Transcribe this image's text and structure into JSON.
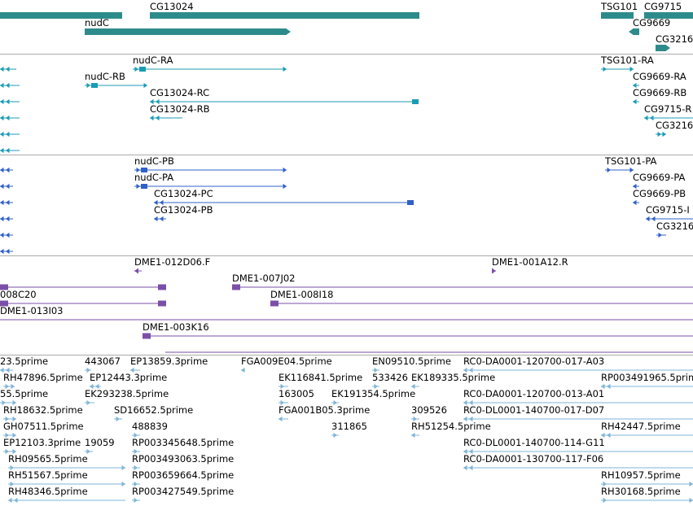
{
  "tracks": [
    {
      "name": "genes",
      "color": "#2e8b8b",
      "features": [
        {
          "label": "",
          "start": -5,
          "end": 150,
          "dir": "none",
          "row": 0,
          "style": "block"
        },
        {
          "label": "CG13024",
          "start": 184,
          "end": 515,
          "dir": "none",
          "row": 0,
          "style": "block"
        },
        {
          "label": "TSG101",
          "start": 738,
          "end": 778,
          "dir": "none",
          "row": 0,
          "style": "block"
        },
        {
          "label": "CG9715",
          "start": 791,
          "end": 851,
          "dir": "none",
          "row": 0,
          "style": "block"
        },
        {
          "label": "nudC",
          "start": 104,
          "end": 352,
          "dir": "right",
          "row": 1,
          "style": "block"
        },
        {
          "label": "CG9669",
          "start": 777,
          "end": 785,
          "dir": "left",
          "row": 1,
          "style": "block"
        },
        {
          "label": "CG3216",
          "start": 805,
          "end": 818,
          "dir": "right",
          "row": 2,
          "style": "block"
        }
      ]
    },
    {
      "name": "transcripts-ra",
      "color": "#1c9bb5",
      "features": [
        {
          "label": "",
          "start": 0,
          "end": 20,
          "dir": "left",
          "row": 0,
          "style": "line"
        },
        {
          "label": "nudC-RA",
          "start": 163,
          "end": 352,
          "dir": "right",
          "row": 0,
          "style": "line"
        },
        {
          "label": "TSG101-RA",
          "start": 738,
          "end": 778,
          "dir": "right",
          "row": 0,
          "style": "line"
        },
        {
          "label": "",
          "start": 0,
          "end": 24,
          "dir": "left",
          "row": 1,
          "style": "line"
        },
        {
          "label": "nudC-RB",
          "start": 104,
          "end": 181,
          "dir": "right",
          "row": 1,
          "style": "line"
        },
        {
          "label": "CG9669-RA",
          "start": 777,
          "end": 785,
          "dir": "left",
          "row": 1,
          "style": "line"
        },
        {
          "label": "",
          "start": 0,
          "end": 24,
          "dir": "left",
          "row": 2,
          "style": "line"
        },
        {
          "label": "CG13024-RC",
          "start": 184,
          "end": 514,
          "dir": "left",
          "row": 2,
          "style": "line"
        },
        {
          "label": "CG9669-RB",
          "start": 777,
          "end": 785,
          "dir": "left",
          "row": 2,
          "style": "line"
        },
        {
          "label": "",
          "start": 0,
          "end": 24,
          "dir": "left",
          "row": 3,
          "style": "line"
        },
        {
          "label": "CG13024-RB",
          "start": 184,
          "end": 224,
          "dir": "left",
          "row": 3,
          "style": "line"
        },
        {
          "label": "CG9715-R",
          "start": 791,
          "end": 851,
          "dir": "left",
          "row": 3,
          "style": "line"
        },
        {
          "label": "",
          "start": 0,
          "end": 24,
          "dir": "left",
          "row": 4,
          "style": "line"
        },
        {
          "label": "CG3216",
          "start": 805,
          "end": 818,
          "dir": "right",
          "row": 4,
          "style": "line"
        },
        {
          "label": "",
          "start": 0,
          "end": 24,
          "dir": "left",
          "row": 5,
          "style": "line"
        }
      ]
    },
    {
      "name": "transcripts-pa",
      "color": "#3060c8",
      "features": [
        {
          "label": "",
          "start": 0,
          "end": 16,
          "dir": "left",
          "row": 0,
          "style": "line"
        },
        {
          "label": "nudC-PB",
          "start": 165,
          "end": 352,
          "dir": "right",
          "row": 0,
          "style": "line"
        },
        {
          "label": "TSG101-PA",
          "start": 743,
          "end": 778,
          "dir": "right",
          "row": 0,
          "style": "line"
        },
        {
          "label": "",
          "start": 0,
          "end": 16,
          "dir": "left",
          "row": 1,
          "style": "line"
        },
        {
          "label": "nudC-PA",
          "start": 165,
          "end": 352,
          "dir": "right",
          "row": 1,
          "style": "line"
        },
        {
          "label": "CG9669-PA",
          "start": 777,
          "end": 785,
          "dir": "left",
          "row": 1,
          "style": "line"
        },
        {
          "label": "",
          "start": 0,
          "end": 16,
          "dir": "left",
          "row": 2,
          "style": "line"
        },
        {
          "label": "CG13024-PC",
          "start": 189,
          "end": 508,
          "dir": "left",
          "row": 2,
          "style": "line"
        },
        {
          "label": "CG9669-PB",
          "start": 777,
          "end": 785,
          "dir": "left",
          "row": 2,
          "style": "line"
        },
        {
          "label": "",
          "start": 0,
          "end": 16,
          "dir": "left",
          "row": 3,
          "style": "line"
        },
        {
          "label": "CG13024-PB",
          "start": 189,
          "end": 204,
          "dir": "left",
          "row": 3,
          "style": "line"
        },
        {
          "label": "CG9715-I",
          "start": 793,
          "end": 851,
          "dir": "left",
          "row": 3,
          "style": "line"
        },
        {
          "label": "",
          "start": 0,
          "end": 16,
          "dir": "left",
          "row": 4,
          "style": "line"
        },
        {
          "label": "CG3216",
          "start": 806,
          "end": 818,
          "dir": "right",
          "row": 4,
          "style": "line"
        },
        {
          "label": "",
          "start": 0,
          "end": 16,
          "dir": "left",
          "row": 5,
          "style": "line"
        }
      ]
    },
    {
      "name": "clones",
      "color": "#7a4fa8",
      "features": [
        {
          "label": "DME1-012D06.F",
          "start": 165,
          "end": 174,
          "dir": "left",
          "row": 0,
          "style": "clone"
        },
        {
          "label": "DME1-001A12.R",
          "start": 604,
          "end": 609,
          "dir": "right",
          "row": 0,
          "style": "clone"
        },
        {
          "label": "",
          "start": 0,
          "end": 204,
          "dir": "left",
          "row": 1,
          "style": "clone"
        },
        {
          "label": "DME1-007J02",
          "start": 285,
          "end": 851,
          "dir": "left",
          "row": 1,
          "style": "clone"
        },
        {
          "label": "008C20",
          "start": 0,
          "end": 204,
          "dir": "left",
          "row": 2,
          "style": "clone"
        },
        {
          "label": "DME1-008I18",
          "start": 332,
          "end": 851,
          "dir": "left",
          "row": 2,
          "style": "clone"
        },
        {
          "label": "DME1-013I03",
          "start": 0,
          "end": 851,
          "dir": "none",
          "row": 3,
          "style": "clone"
        },
        {
          "label": "DME1-003K16",
          "start": 175,
          "end": 851,
          "dir": "left",
          "row": 4,
          "style": "clone"
        },
        {
          "label": "",
          "start": 203,
          "end": 851,
          "dir": "none",
          "row": 5,
          "style": "clone"
        }
      ]
    },
    {
      "name": "ests",
      "color": "#7fb4d8",
      "features": [
        {
          "label": "23.5prime",
          "start": 0,
          "end": 16,
          "dir": "left",
          "row": 0,
          "style": "est"
        },
        {
          "label": "443067",
          "start": 104,
          "end": 112,
          "dir": "right",
          "row": 0,
          "style": "est"
        },
        {
          "label": "EP13859.3prime",
          "start": 160,
          "end": 172,
          "dir": "left",
          "row": 0,
          "style": "est"
        },
        {
          "label": "FGA009E04.5prime",
          "start": 296,
          "end": 301,
          "dir": "left",
          "row": 0,
          "style": "est"
        },
        {
          "label": "EN09510.5prime",
          "start": 457,
          "end": 466,
          "dir": "right",
          "row": 0,
          "style": "est"
        },
        {
          "label": "RC0-DA0001-120700-017-A03",
          "start": 569,
          "end": 851,
          "dir": "left",
          "row": 0,
          "style": "est"
        },
        {
          "label": "RH47896.5prime",
          "start": 4,
          "end": 18,
          "dir": "right",
          "row": 1,
          "style": "est"
        },
        {
          "label": "EP12443.3prime",
          "start": 110,
          "end": 124,
          "dir": "left",
          "row": 1,
          "style": "est"
        },
        {
          "label": "EK116841.5prime",
          "start": 342,
          "end": 354,
          "dir": "right",
          "row": 1,
          "style": "est"
        },
        {
          "label": "533426",
          "start": 457,
          "end": 466,
          "dir": "right",
          "row": 1,
          "style": "est"
        },
        {
          "label": "EK189335.5prime",
          "start": 505,
          "end": 515,
          "dir": "left",
          "row": 1,
          "style": "est"
        },
        {
          "label": "RP003491965.5prime",
          "start": 738,
          "end": 851,
          "dir": "left",
          "row": 1,
          "style": "est"
        },
        {
          "label": "55.5prime",
          "start": 0,
          "end": 20,
          "dir": "right",
          "row": 2,
          "style": "est"
        },
        {
          "label": "EK293238.5prime",
          "start": 104,
          "end": 116,
          "dir": "right",
          "row": 2,
          "style": "est"
        },
        {
          "label": "163005",
          "start": 342,
          "end": 354,
          "dir": "right",
          "row": 2,
          "style": "est"
        },
        {
          "label": "EK191354.5prime",
          "start": 407,
          "end": 416,
          "dir": "right",
          "row": 2,
          "style": "est"
        },
        {
          "label": "RC0-DA0001-120700-013-A01",
          "start": 569,
          "end": 851,
          "dir": "left",
          "row": 2,
          "style": "est"
        },
        {
          "label": "RH18632.5prime",
          "start": 4,
          "end": 20,
          "dir": "right",
          "row": 3,
          "style": "est"
        },
        {
          "label": "SD16652.5prime",
          "start": 140,
          "end": 150,
          "dir": "right",
          "row": 3,
          "style": "est"
        },
        {
          "label": "FGA001B05.3prime",
          "start": 342,
          "end": 354,
          "dir": "left",
          "row": 3,
          "style": "est"
        },
        {
          "label": "309526",
          "start": 505,
          "end": 515,
          "dir": "right",
          "row": 3,
          "style": "est"
        },
        {
          "label": "RC0-DL0001-140700-017-D07",
          "start": 569,
          "end": 851,
          "dir": "left",
          "row": 3,
          "style": "est"
        },
        {
          "label": "GH07511.5prime",
          "start": 4,
          "end": 20,
          "dir": "right",
          "row": 4,
          "style": "est"
        },
        {
          "label": "488839",
          "start": 162,
          "end": 172,
          "dir": "right",
          "row": 4,
          "style": "est"
        },
        {
          "label": "311865",
          "start": 407,
          "end": 416,
          "dir": "right",
          "row": 4,
          "style": "est"
        },
        {
          "label": "RH51254.5prime",
          "start": 505,
          "end": 515,
          "dir": "left",
          "row": 4,
          "style": "est"
        },
        {
          "label": "RH42447.5prime",
          "start": 738,
          "end": 851,
          "dir": "left",
          "row": 4,
          "style": "est"
        },
        {
          "label": "EP12103.3prime",
          "start": 4,
          "end": 20,
          "dir": "right",
          "row": 5,
          "style": "est"
        },
        {
          "label": "19059",
          "start": 104,
          "end": 114,
          "dir": "right",
          "row": 5,
          "style": "est"
        },
        {
          "label": "RP003345648.5prime",
          "start": 162,
          "end": 172,
          "dir": "right",
          "row": 5,
          "style": "est"
        },
        {
          "label": "RC0-DL0001-140700-114-G11",
          "start": 569,
          "end": 851,
          "dir": "left",
          "row": 5,
          "style": "est"
        },
        {
          "label": "RH09565.5prime",
          "start": 10,
          "end": 154,
          "dir": "right",
          "row": 6,
          "style": "est"
        },
        {
          "label": "RP003493063.5prime",
          "start": 162,
          "end": 172,
          "dir": "right",
          "row": 6,
          "style": "est"
        },
        {
          "label": "RC0-DA0001-130700-117-F06",
          "start": 569,
          "end": 851,
          "dir": "left",
          "row": 6,
          "style": "est"
        },
        {
          "label": "RH51567.5prime",
          "start": 10,
          "end": 154,
          "dir": "right",
          "row": 7,
          "style": "est"
        },
        {
          "label": "RP003659664.5prime",
          "start": 162,
          "end": 172,
          "dir": "right",
          "row": 7,
          "style": "est"
        },
        {
          "label": "RH10957.5prime",
          "start": 738,
          "end": 851,
          "dir": "right",
          "row": 7,
          "style": "est"
        },
        {
          "label": "RH48346.5prime",
          "start": 10,
          "end": 154,
          "dir": "left",
          "row": 8,
          "style": "est"
        },
        {
          "label": "RP003427549.5prime",
          "start": 162,
          "end": 172,
          "dir": "right",
          "row": 8,
          "style": "est"
        },
        {
          "label": "RH30168.5prime",
          "start": 738,
          "end": 851,
          "dir": "right",
          "row": 8,
          "style": "est"
        }
      ]
    }
  ]
}
